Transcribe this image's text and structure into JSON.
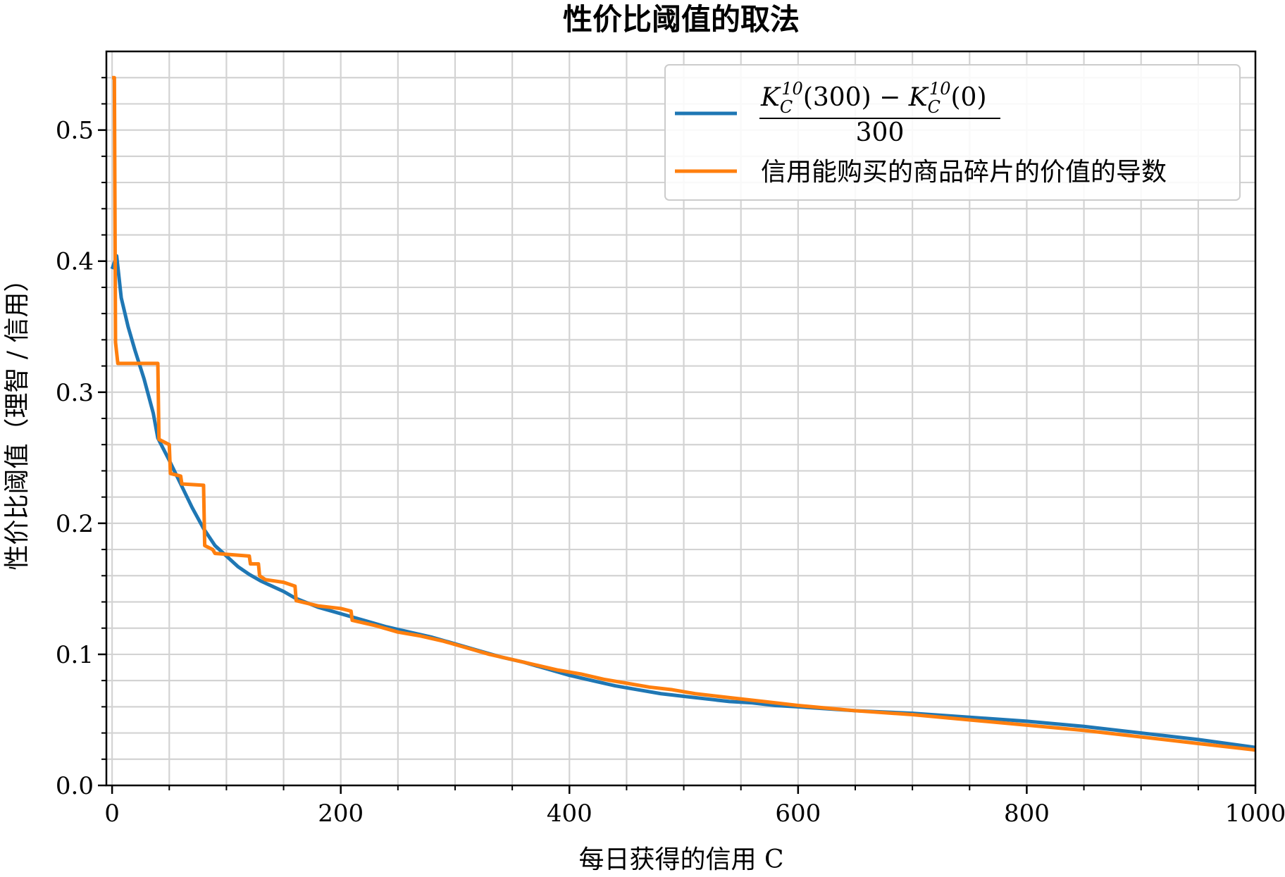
{
  "chart_data": {
    "type": "line",
    "title": "性价比阈值的取法",
    "xlabel": "每日获得的信用 C",
    "ylabel": "性价比阈值（理智 / 信用）",
    "xlim": [
      -5,
      1000
    ],
    "ylim": [
      0,
      0.56
    ],
    "xticks": [
      0,
      200,
      400,
      600,
      800,
      1000
    ],
    "xtick_labels": [
      "0",
      "200",
      "400",
      "600",
      "800",
      "1000"
    ],
    "yticks": [
      0.0,
      0.1,
      0.2,
      0.3,
      0.4,
      0.5
    ],
    "ytick_labels": [
      "0.0",
      "0.1",
      "0.2",
      "0.3",
      "0.4",
      "0.5"
    ],
    "grid": true,
    "minor_grid": true,
    "legend_position": "upper right",
    "series": [
      {
        "name_numerator_left": "K",
        "name_sub": "C",
        "name_sup": "10",
        "name_numerator_mid": "(300) − ",
        "name_numerator_end": "(0)",
        "name_denominator": "300",
        "color": "#1f77b4",
        "points": [
          [
            0,
            0.394
          ],
          [
            4,
            0.404
          ],
          [
            8,
            0.372
          ],
          [
            14,
            0.35
          ],
          [
            20,
            0.332
          ],
          [
            28,
            0.31
          ],
          [
            36,
            0.284
          ],
          [
            40,
            0.265
          ],
          [
            50,
            0.248
          ],
          [
            60,
            0.23
          ],
          [
            70,
            0.212
          ],
          [
            80,
            0.196
          ],
          [
            90,
            0.183
          ],
          [
            100,
            0.175
          ],
          [
            110,
            0.167
          ],
          [
            120,
            0.161
          ],
          [
            130,
            0.156
          ],
          [
            140,
            0.152
          ],
          [
            150,
            0.148
          ],
          [
            160,
            0.143
          ],
          [
            180,
            0.136
          ],
          [
            200,
            0.131
          ],
          [
            220,
            0.126
          ],
          [
            240,
            0.121
          ],
          [
            260,
            0.117
          ],
          [
            280,
            0.113
          ],
          [
            300,
            0.108
          ],
          [
            320,
            0.103
          ],
          [
            340,
            0.098
          ],
          [
            360,
            0.094
          ],
          [
            380,
            0.089
          ],
          [
            400,
            0.084
          ],
          [
            420,
            0.08
          ],
          [
            440,
            0.076
          ],
          [
            460,
            0.073
          ],
          [
            480,
            0.07
          ],
          [
            500,
            0.068
          ],
          [
            520,
            0.066
          ],
          [
            540,
            0.064
          ],
          [
            560,
            0.063
          ],
          [
            580,
            0.061
          ],
          [
            600,
            0.06
          ],
          [
            650,
            0.057
          ],
          [
            700,
            0.055
          ],
          [
            750,
            0.052
          ],
          [
            800,
            0.049
          ],
          [
            850,
            0.045
          ],
          [
            900,
            0.04
          ],
          [
            950,
            0.035
          ],
          [
            1000,
            0.029
          ]
        ]
      },
      {
        "name": "信用能购买的商品碎片的价值的导数",
        "color": "#ff7f0e",
        "points": [
          [
            0,
            0.54
          ],
          [
            2,
            0.54
          ],
          [
            3,
            0.338
          ],
          [
            5,
            0.322
          ],
          [
            40,
            0.322
          ],
          [
            41,
            0.264
          ],
          [
            50,
            0.26
          ],
          [
            51,
            0.238
          ],
          [
            60,
            0.236
          ],
          [
            61,
            0.23
          ],
          [
            80,
            0.229
          ],
          [
            81,
            0.183
          ],
          [
            88,
            0.18
          ],
          [
            90,
            0.177
          ],
          [
            120,
            0.175
          ],
          [
            121,
            0.169
          ],
          [
            128,
            0.169
          ],
          [
            129,
            0.16
          ],
          [
            134,
            0.157
          ],
          [
            150,
            0.155
          ],
          [
            160,
            0.152
          ],
          [
            161,
            0.141
          ],
          [
            180,
            0.137
          ],
          [
            200,
            0.135
          ],
          [
            209,
            0.133
          ],
          [
            210,
            0.126
          ],
          [
            230,
            0.122
          ],
          [
            250,
            0.117
          ],
          [
            270,
            0.114
          ],
          [
            290,
            0.11
          ],
          [
            310,
            0.105
          ],
          [
            330,
            0.1
          ],
          [
            350,
            0.096
          ],
          [
            370,
            0.092
          ],
          [
            390,
            0.088
          ],
          [
            410,
            0.085
          ],
          [
            430,
            0.081
          ],
          [
            450,
            0.078
          ],
          [
            470,
            0.075
          ],
          [
            490,
            0.073
          ],
          [
            510,
            0.07
          ],
          [
            540,
            0.067
          ],
          [
            570,
            0.064
          ],
          [
            600,
            0.061
          ],
          [
            650,
            0.057
          ],
          [
            700,
            0.054
          ],
          [
            750,
            0.05
          ],
          [
            800,
            0.046
          ],
          [
            850,
            0.042
          ],
          [
            900,
            0.037
          ],
          [
            950,
            0.032
          ],
          [
            1000,
            0.027
          ]
        ]
      }
    ]
  }
}
